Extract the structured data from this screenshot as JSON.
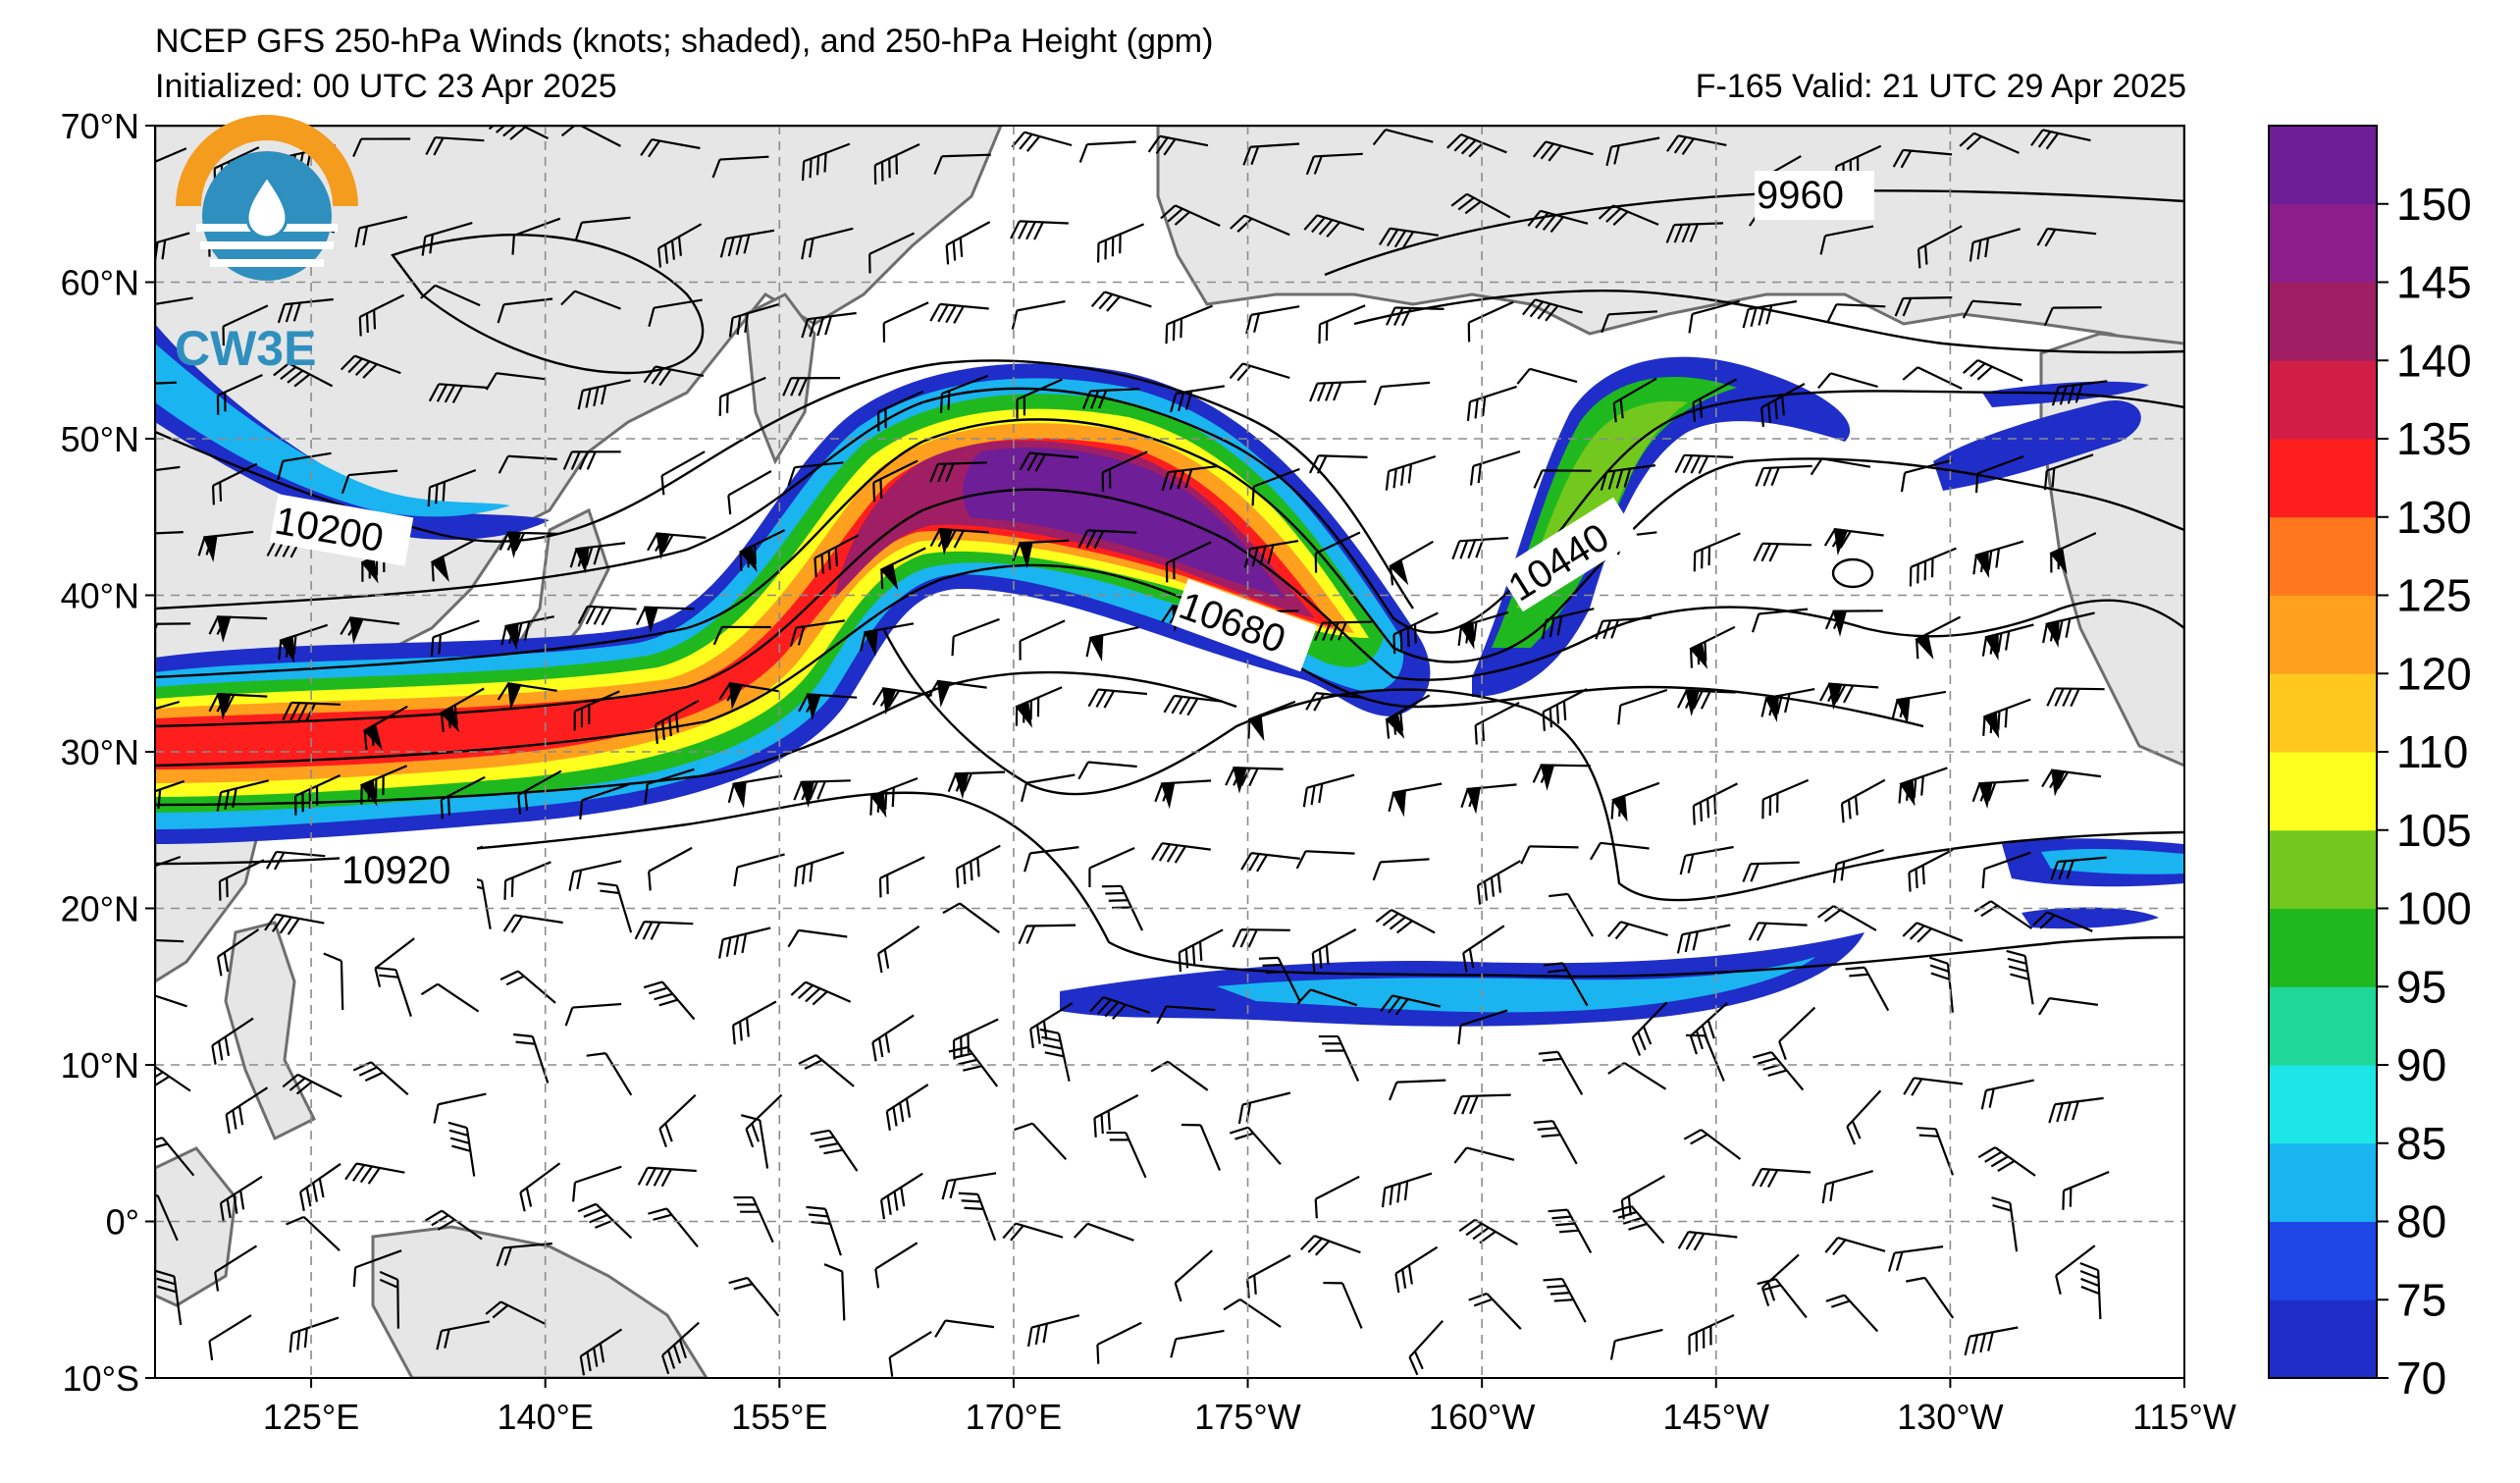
{
  "header": {
    "title": "NCEP GFS 250-hPa Winds (knots; shaded), and 250-hPa Height (gpm)",
    "initialized": "Initialized: 00 UTC 23 Apr 2025",
    "valid": "F-165  Valid: 21 UTC 29 Apr 2025"
  },
  "logo": {
    "text": "CW3E"
  },
  "map": {
    "lat_labels": [
      "70°N",
      "60°N",
      "50°N",
      "40°N",
      "30°N",
      "20°N",
      "10°N",
      "0°",
      "10°S"
    ],
    "lon_labels": [
      "125°E",
      "140°E",
      "155°E",
      "170°E",
      "175°W",
      "160°W",
      "145°W",
      "130°W",
      "115°W"
    ],
    "lat_range": [
      -10,
      70
    ],
    "lon_range_east": [
      115,
      245
    ],
    "gridlines": true,
    "contour_labels": [
      "9960",
      "10200",
      "10440",
      "10680",
      "10920"
    ]
  },
  "colorbar": {
    "ticks": [
      "70",
      "75",
      "80",
      "85",
      "90",
      "95",
      "100",
      "105",
      "110",
      "120",
      "125",
      "130",
      "135",
      "140",
      "145",
      "150"
    ],
    "colors": [
      "#1f2ec8",
      "#1f46e6",
      "#1ab4f0",
      "#1de6e6",
      "#20d79a",
      "#1fb91f",
      "#73c81e",
      "#ffff1e",
      "#ffc81e",
      "#ffa01e",
      "#ff781e",
      "#ff1e1e",
      "#d21e46",
      "#a01e64",
      "#8c1e8c",
      "#6e1e96"
    ]
  },
  "colors": {
    "land": "#e6e6e6",
    "coast": "#6e6e6e",
    "grid": "#8c8c8c"
  }
}
